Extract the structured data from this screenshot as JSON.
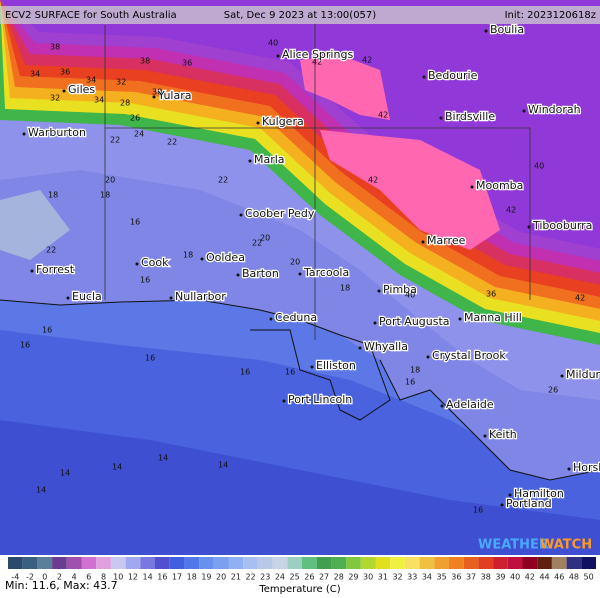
{
  "header": {
    "title": "ECV2 SURFACE for South Australia",
    "valid": "Sat, Dec 9 2023 at 13:00(057)",
    "init": "Init: 2023120618z"
  },
  "places": [
    "Boulia",
    "Alice Springs",
    "Bedourie",
    "Windorah",
    "Giles",
    "Yulara",
    "Kulgera",
    "Birdsville",
    "Warburton",
    "Marla",
    "Moomba",
    "Coober Pedy",
    "Tibooburra",
    "Marree",
    "Forrest",
    "Cook",
    "Ooldea",
    "Barton",
    "Tarcoola",
    "Pimba",
    "Eucla",
    "Nullarbor",
    "Port Augusta",
    "Manna Hill",
    "Ceduna",
    "Whyalla",
    "Crystal Brook",
    "Mildura",
    "Elliston",
    "Port Lincoln",
    "Adelaide",
    "Keith",
    "Horsham",
    "Hamilton",
    "Portland"
  ],
  "contour_labels": [
    38,
    36,
    34,
    32,
    34,
    36,
    38,
    40,
    42,
    42,
    42,
    42,
    40,
    34,
    32,
    30,
    28,
    26,
    24,
    22,
    22,
    20,
    22,
    18,
    18,
    16,
    22,
    18,
    20,
    16,
    16,
    16,
    16,
    16,
    14,
    14,
    14,
    14,
    14,
    16,
    18,
    40,
    42,
    42,
    36,
    26,
    18,
    20,
    22,
    16,
    16
  ],
  "colorbar": {
    "ticks": [
      -4,
      -2,
      0,
      2,
      4,
      6,
      8,
      10,
      12,
      14,
      16,
      17,
      18,
      19,
      20,
      21,
      22,
      23,
      24,
      25,
      26,
      27,
      28,
      29,
      30,
      31,
      32,
      33,
      34,
      35,
      36,
      37,
      38,
      39,
      40,
      42,
      44,
      46,
      48,
      50
    ],
    "colors": [
      "#2b4a6b",
      "#3a6080",
      "#5a7f9a",
      "#6a3c90",
      "#a050b0",
      "#d070d0",
      "#e0a0e0",
      "#c8c8f0",
      "#a0a8f0",
      "#7878e0",
      "#5050d0",
      "#4060e0",
      "#5078e8",
      "#6890ee",
      "#7ca0f0",
      "#90b0f4",
      "#a8c0f0",
      "#b8c8e8",
      "#c8d4e4",
      "#9ad0c0",
      "#60c080",
      "#40a050",
      "#50b050",
      "#80c840",
      "#b0d830",
      "#e0e020",
      "#f0f040",
      "#f8e060",
      "#f0c040",
      "#f0a030",
      "#f08020",
      "#e86020",
      "#e04020",
      "#d02030",
      "#c01040",
      "#900020",
      "#602010",
      "#a08060",
      "#303080",
      "#101060"
    ],
    "title": "Temperature (C)"
  },
  "stats": "Min: 11.6, Max: 43.7",
  "logo": {
    "word1": "WEATHER",
    "word2": "WATCH"
  }
}
